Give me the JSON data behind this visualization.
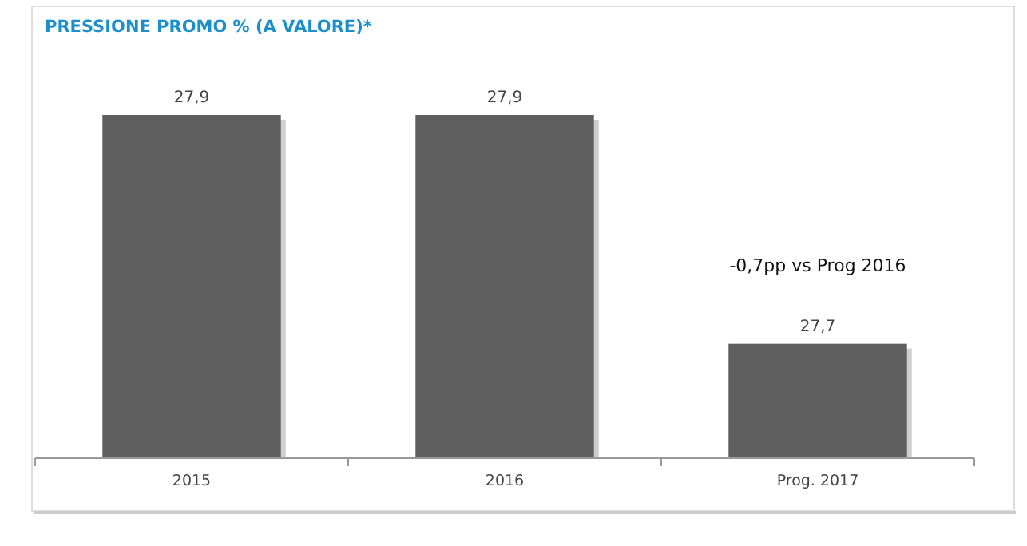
{
  "chart_data": {
    "type": "bar",
    "title": "PRESSIONE PROMO % (A VALORE)*",
    "categories": [
      "2015",
      "2016",
      "Prog. 2017"
    ],
    "values": [
      27.9,
      27.9,
      27.7
    ],
    "value_labels": [
      "27,9",
      "27,9",
      "27,7"
    ],
    "color": "#5f5f5f",
    "ylim": [
      27.6,
      27.9
    ],
    "tick_labels": "x",
    "annotations": [
      "-0,7pp vs Prog 2016"
    ]
  }
}
